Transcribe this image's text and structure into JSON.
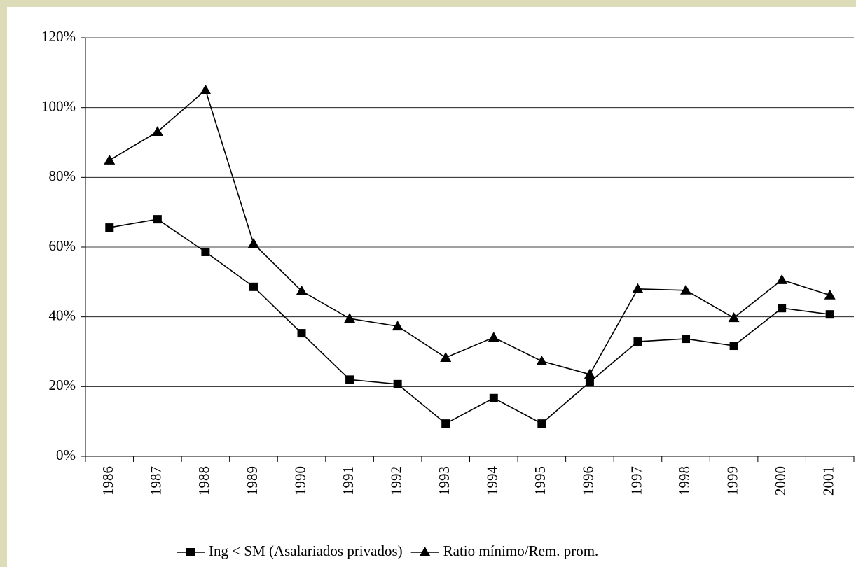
{
  "chart_data": {
    "type": "line",
    "categories": [
      "1986",
      "1987",
      "1988",
      "1989",
      "1990",
      "1991",
      "1992",
      "1993",
      "1994",
      "1995",
      "1996",
      "1997",
      "1998",
      "1999",
      "2000",
      "2001"
    ],
    "series": [
      {
        "name": "Ing < SM (Asalariados privados)",
        "color": "#000000",
        "marker": "square",
        "values": [
          65.6,
          68,
          58.6,
          48.6,
          35.3,
          22,
          20.7,
          9.4,
          16.7,
          9.4,
          21.3,
          32.9,
          33.7,
          31.7,
          42.5,
          40.7
        ]
      },
      {
        "name": "Ratio mínimo/Rem. prom.",
        "color": "#000000",
        "marker": "triangle",
        "values": [
          84.9,
          93.1,
          105,
          61,
          47.4,
          39.5,
          37.3,
          28.3,
          34.1,
          27.3,
          23.5,
          48,
          47.6,
          39.7,
          50.6,
          46.2
        ]
      }
    ],
    "ylim": [
      0,
      120
    ],
    "yticks": [
      {
        "value": 0,
        "label": "0%"
      },
      {
        "value": 20,
        "label": "20%"
      },
      {
        "value": 40,
        "label": "40%"
      },
      {
        "value": 60,
        "label": "60%"
      },
      {
        "value": 80,
        "label": "80%"
      },
      {
        "value": 100,
        "label": "100%"
      },
      {
        "value": 120,
        "label": "120%"
      }
    ],
    "grid": true,
    "legend": "bottom"
  }
}
